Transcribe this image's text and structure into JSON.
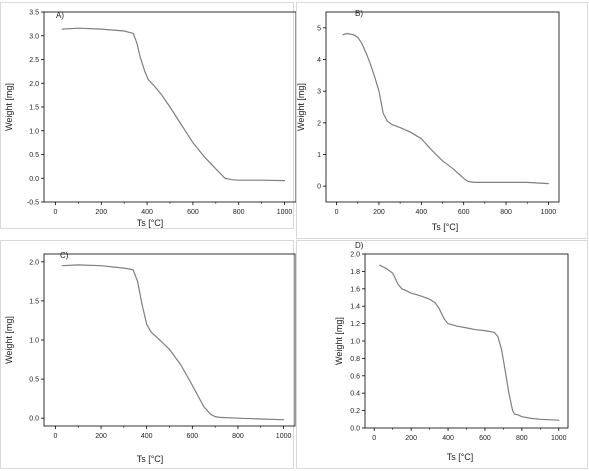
{
  "chart_data": [
    {
      "type": "line",
      "panel_label": "A)",
      "xlabel": "Ts [°C]",
      "ylabel": "Weight [mg]",
      "xlim": [
        -50,
        1050
      ],
      "ylim": [
        -0.5,
        3.5
      ],
      "xticks": [
        0,
        200,
        400,
        600,
        800,
        1000
      ],
      "yticks": [
        -0.5,
        0.0,
        0.5,
        1.0,
        1.5,
        2.0,
        2.5,
        3.0,
        3.5
      ],
      "ytick_decimals": 1,
      "grid": false,
      "color": "#7f7f7f",
      "x": [
        30,
        100,
        200,
        300,
        340,
        355,
        370,
        390,
        405,
        430,
        460,
        500,
        550,
        600,
        650,
        700,
        740,
        770,
        800,
        900,
        1000
      ],
      "y": [
        3.14,
        3.16,
        3.14,
        3.1,
        3.05,
        2.85,
        2.55,
        2.25,
        2.08,
        1.95,
        1.78,
        1.5,
        1.12,
        0.75,
        0.45,
        0.2,
        0.0,
        -0.03,
        -0.04,
        -0.04,
        -0.05
      ]
    },
    {
      "type": "line",
      "panel_label": "B)",
      "xlabel": "Ts [°C]",
      "ylabel": "Weight [mg]",
      "xlim": [
        -50,
        1050
      ],
      "ylim": [
        -0.5,
        5.5
      ],
      "xticks": [
        0,
        200,
        400,
        600,
        800,
        1000
      ],
      "yticks": [
        0,
        1,
        2,
        3,
        4,
        5
      ],
      "ytick_decimals": 0,
      "grid": false,
      "color": "#7f7f7f",
      "x": [
        30,
        50,
        80,
        100,
        120,
        140,
        160,
        180,
        200,
        220,
        240,
        260,
        300,
        350,
        400,
        420,
        440,
        470,
        500,
        550,
        600,
        620,
        650,
        700,
        800,
        900,
        1000
      ],
      "y": [
        4.78,
        4.82,
        4.78,
        4.7,
        4.5,
        4.2,
        3.85,
        3.45,
        3.0,
        2.3,
        2.05,
        1.95,
        1.85,
        1.7,
        1.5,
        1.35,
        1.2,
        1.0,
        0.8,
        0.55,
        0.25,
        0.15,
        0.12,
        0.12,
        0.12,
        0.12,
        0.08
      ]
    },
    {
      "type": "line",
      "panel_label": "C)",
      "xlabel": "Ts [°C]",
      "ylabel": "Weight [mg]",
      "xlim": [
        -50,
        1050
      ],
      "ylim": [
        -0.1,
        2.1
      ],
      "xticks": [
        0,
        200,
        400,
        600,
        800,
        1000
      ],
      "yticks": [
        0.0,
        0.5,
        1.0,
        1.5,
        2.0
      ],
      "ytick_decimals": 1,
      "grid": false,
      "color": "#7f7f7f",
      "x": [
        30,
        100,
        200,
        300,
        340,
        360,
        380,
        400,
        420,
        450,
        500,
        550,
        600,
        650,
        680,
        700,
        720,
        800,
        900,
        1000
      ],
      "y": [
        1.95,
        1.96,
        1.95,
        1.92,
        1.9,
        1.75,
        1.45,
        1.2,
        1.1,
        1.02,
        0.88,
        0.68,
        0.42,
        0.15,
        0.05,
        0.02,
        0.01,
        0.0,
        -0.01,
        -0.02
      ]
    },
    {
      "type": "line",
      "panel_label": "D)",
      "xlabel": "Ts [°C]",
      "ylabel": "Weight [mg]",
      "xlim": [
        -50,
        1050
      ],
      "ylim": [
        0.0,
        2.0
      ],
      "xticks": [
        0,
        200,
        400,
        600,
        800,
        1000
      ],
      "yticks": [
        0.0,
        0.2,
        0.4,
        0.6,
        0.8,
        1.0,
        1.2,
        1.4,
        1.6,
        1.8,
        2.0
      ],
      "ytick_decimals": 1,
      "grid": false,
      "color": "#7f7f7f",
      "x": [
        30,
        60,
        100,
        130,
        150,
        200,
        250,
        300,
        330,
        350,
        380,
        400,
        450,
        500,
        550,
        600,
        650,
        670,
        690,
        710,
        730,
        750,
        760,
        780,
        800,
        850,
        900,
        1000
      ],
      "y": [
        1.87,
        1.84,
        1.78,
        1.65,
        1.6,
        1.55,
        1.52,
        1.48,
        1.44,
        1.38,
        1.25,
        1.2,
        1.17,
        1.15,
        1.13,
        1.12,
        1.1,
        1.05,
        0.9,
        0.65,
        0.4,
        0.2,
        0.16,
        0.15,
        0.13,
        0.11,
        0.1,
        0.09
      ]
    }
  ]
}
